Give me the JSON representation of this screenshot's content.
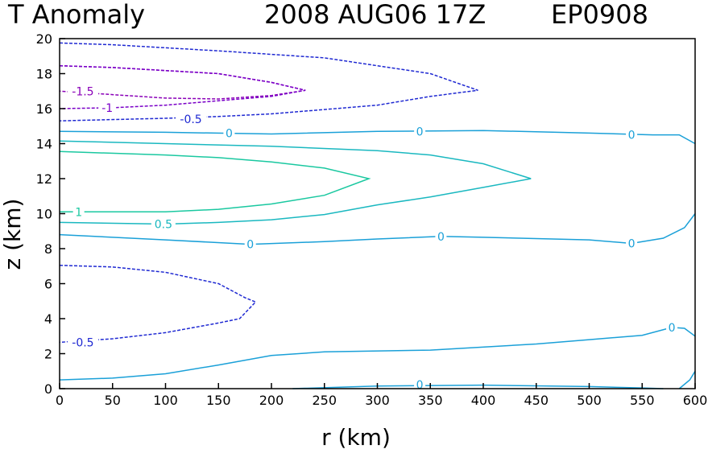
{
  "title": {
    "field": "T Anomaly",
    "datetime": "2008 AUG06 17Z",
    "storm_id": "EP0908"
  },
  "chart_data": {
    "type": "contour",
    "xlabel": "r (km)",
    "ylabel": "z (km)",
    "xlim": [
      0,
      600
    ],
    "ylim": [
      0,
      20
    ],
    "xticks": [
      "0",
      "50",
      "100",
      "150",
      "200",
      "250",
      "300",
      "350",
      "400",
      "450",
      "500",
      "550",
      "600"
    ],
    "yticks": [
      "0",
      "2",
      "4",
      "6",
      "8",
      "10",
      "12",
      "14",
      "16",
      "18",
      "20"
    ],
    "contours": [
      {
        "level": "-1.5",
        "color": "#8a00b8",
        "dashed": true,
        "points": [
          [
            0,
            18.45
          ],
          [
            50,
            18.35
          ],
          [
            150,
            18.0
          ],
          [
            200,
            17.5
          ],
          [
            232,
            17.05
          ],
          [
            200,
            16.75
          ],
          [
            150,
            16.55
          ],
          [
            100,
            16.6
          ],
          [
            50,
            16.8
          ],
          [
            0,
            17.0
          ]
        ],
        "labels": [
          {
            "text": "-1.5",
            "x": 22,
            "y": 17.0
          }
        ]
      },
      {
        "level": "-1",
        "color": "#7a00c8",
        "dashed": true,
        "points": [
          [
            0,
            18.45
          ],
          [
            50,
            18.35
          ],
          [
            150,
            18.0
          ],
          [
            200,
            17.5
          ],
          [
            232,
            17.05
          ],
          [
            200,
            16.7
          ],
          [
            150,
            16.45
          ],
          [
            100,
            16.2
          ],
          [
            50,
            16.05
          ],
          [
            0,
            16.0
          ]
        ],
        "labels": [
          {
            "text": "-1",
            "x": 45,
            "y": 16.05
          }
        ]
      },
      {
        "level": "-0.5",
        "color": "#1e28d2",
        "dashed": true,
        "points": [
          [
            0,
            19.75
          ],
          [
            50,
            19.65
          ],
          [
            150,
            19.3
          ],
          [
            250,
            18.9
          ],
          [
            300,
            18.45
          ],
          [
            350,
            18.0
          ],
          [
            395,
            17.05
          ],
          [
            350,
            16.7
          ],
          [
            300,
            16.2
          ],
          [
            250,
            15.95
          ],
          [
            200,
            15.7
          ],
          [
            150,
            15.55
          ],
          [
            100,
            15.45
          ],
          [
            0,
            15.3
          ]
        ],
        "labels": [
          {
            "text": "-0.5",
            "x": 124,
            "y": 15.4
          }
        ]
      },
      {
        "level": "0",
        "color": "#1aa0d8",
        "dashed": false,
        "points": [
          [
            0,
            14.7
          ],
          [
            100,
            14.65
          ],
          [
            200,
            14.55
          ],
          [
            300,
            14.7
          ],
          [
            400,
            14.75
          ],
          [
            500,
            14.6
          ],
          [
            560,
            14.5
          ],
          [
            585,
            14.5
          ],
          [
            600,
            14.0
          ]
        ],
        "labels": [
          {
            "text": "0",
            "x": 160,
            "y": 14.6
          },
          {
            "text": "0",
            "x": 340,
            "y": 14.7
          },
          {
            "text": "0",
            "x": 540,
            "y": 14.5
          }
        ]
      },
      {
        "level": "0.5",
        "color": "#1ab8c0",
        "dashed": false,
        "points": [
          [
            0,
            14.15
          ],
          [
            100,
            14.0
          ],
          [
            200,
            13.85
          ],
          [
            300,
            13.6
          ],
          [
            350,
            13.35
          ],
          [
            400,
            12.85
          ],
          [
            445,
            12.0
          ],
          [
            400,
            11.5
          ],
          [
            350,
            10.95
          ],
          [
            300,
            10.5
          ],
          [
            250,
            9.95
          ],
          [
            200,
            9.65
          ],
          [
            150,
            9.5
          ],
          [
            100,
            9.4
          ],
          [
            0,
            9.5
          ]
        ],
        "labels": [
          {
            "text": "0.5",
            "x": 98,
            "y": 9.4
          }
        ]
      },
      {
        "level": "1",
        "color": "#1ac8a0",
        "dashed": false,
        "points": [
          [
            0,
            13.55
          ],
          [
            100,
            13.35
          ],
          [
            150,
            13.2
          ],
          [
            200,
            12.95
          ],
          [
            250,
            12.6
          ],
          [
            292,
            12.0
          ],
          [
            250,
            11.05
          ],
          [
            200,
            10.55
          ],
          [
            150,
            10.25
          ],
          [
            100,
            10.1
          ],
          [
            0,
            10.1
          ]
        ],
        "labels": [
          {
            "text": "1",
            "x": 18,
            "y": 10.1
          }
        ]
      },
      {
        "level": "0",
        "color": "#1aa0d8",
        "dashed": false,
        "points": [
          [
            0,
            8.8
          ],
          [
            100,
            8.5
          ],
          [
            180,
            8.25
          ],
          [
            250,
            8.4
          ],
          [
            300,
            8.55
          ],
          [
            360,
            8.7
          ],
          [
            400,
            8.65
          ],
          [
            500,
            8.5
          ],
          [
            540,
            8.3
          ],
          [
            570,
            8.6
          ],
          [
            590,
            9.2
          ],
          [
            600,
            10.0
          ]
        ],
        "labels": [
          {
            "text": "0",
            "x": 180,
            "y": 8.25
          },
          {
            "text": "0",
            "x": 360,
            "y": 8.7
          },
          {
            "text": "0",
            "x": 540,
            "y": 8.3
          }
        ]
      },
      {
        "level": "-0.5",
        "color": "#1e28d2",
        "dashed": true,
        "points": [
          [
            0,
            7.05
          ],
          [
            50,
            6.95
          ],
          [
            100,
            6.65
          ],
          [
            150,
            6.0
          ],
          [
            175,
            5.2
          ],
          [
            185,
            4.95
          ],
          [
            170,
            4.0
          ],
          [
            150,
            3.75
          ],
          [
            100,
            3.2
          ],
          [
            50,
            2.85
          ],
          [
            0,
            2.65
          ]
        ],
        "labels": [
          {
            "text": "-0.5",
            "x": 22,
            "y": 2.65
          }
        ]
      },
      {
        "level": "0",
        "color": "#1aa0d8",
        "dashed": false,
        "points": [
          [
            0,
            0.5
          ],
          [
            50,
            0.6
          ],
          [
            100,
            0.85
          ],
          [
            150,
            1.35
          ],
          [
            200,
            1.9
          ],
          [
            250,
            2.1
          ],
          [
            350,
            2.2
          ],
          [
            450,
            2.55
          ],
          [
            500,
            2.8
          ],
          [
            550,
            3.05
          ],
          [
            578,
            3.5
          ],
          [
            590,
            3.45
          ],
          [
            600,
            3.0
          ]
        ],
        "labels": [
          {
            "text": "0",
            "x": 578,
            "y": 3.5
          }
        ]
      },
      {
        "level": "0",
        "color": "#1aa0d8",
        "dashed": false,
        "points": [
          [
            220,
            0.0
          ],
          [
            300,
            0.15
          ],
          [
            400,
            0.2
          ],
          [
            500,
            0.12
          ],
          [
            550,
            0.04
          ],
          [
            570,
            0.0
          ]
        ],
        "labels": [
          {
            "text": "0",
            "x": 340,
            "y": 0.22
          }
        ]
      },
      {
        "level": "0",
        "color": "#1aa0d8",
        "dashed": false,
        "points": [
          [
            585,
            0.0
          ],
          [
            595,
            0.5
          ],
          [
            600,
            1.0
          ]
        ],
        "labels": []
      }
    ]
  }
}
